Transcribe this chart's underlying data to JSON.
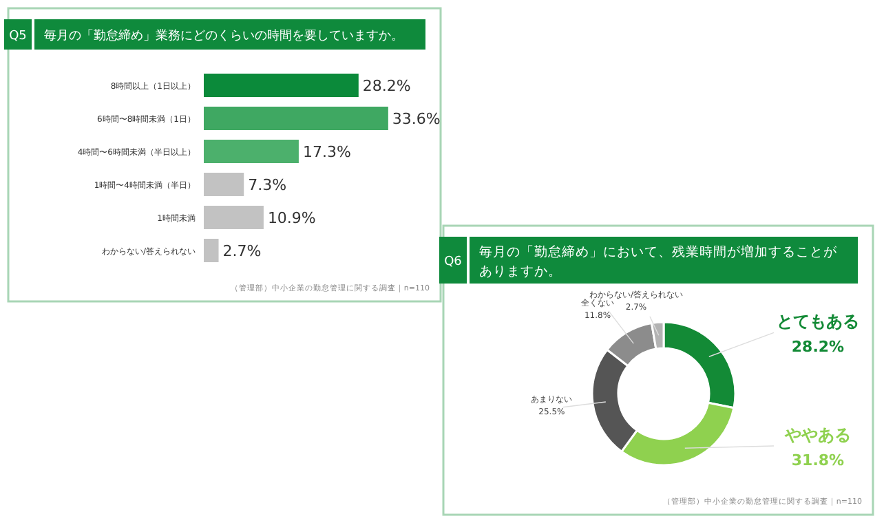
{
  "chart_data": [
    {
      "type": "bar",
      "orientation": "horizontal",
      "title": "毎月の「勤怠締め」業務にどのくらいの時間を要していますか。",
      "annotations": [
        "Q5",
        "（管理部）中小企業の勤怠管理に関する調査｜n=110"
      ],
      "categories": [
        "8時間以上（1日以上）",
        "6時間〜8時間未満（1日）",
        "4時間〜6時間未満（半日以上）",
        "1時間〜4時間未満（半日）",
        "1時間未満",
        "わからない/答えられない"
      ],
      "values": [
        28.2,
        33.6,
        17.3,
        7.3,
        10.9,
        2.7
      ],
      "colors": [
        "#0b8a3a",
        "#3fa862",
        "#4cb06c",
        "#c2c2c2",
        "#c2c2c2",
        "#c2c2c2"
      ],
      "value_labels": [
        "28.2%",
        "33.6%",
        "17.3%",
        "7.3%",
        "10.9%",
        "2.7%"
      ]
    },
    {
      "type": "donut",
      "title": "毎月の「勤怠締め」において、残業時間が増加することがありますか。",
      "annotations": [
        "Q6",
        "（管理部）中小企業の勤怠管理に関する調査｜n=110"
      ],
      "categories": [
        "とてもある",
        "ややある",
        "あまりない",
        "全くない",
        "わからない/答えられない"
      ],
      "values": [
        28.2,
        31.8,
        25.5,
        11.8,
        2.7
      ],
      "colors": [
        "#138a36",
        "#8fd14f",
        "#555555",
        "#8c8c8c",
        "#b3b3b3"
      ],
      "value_labels": [
        "28.2%",
        "31.8%",
        "25.5%",
        "11.8%",
        "2.7%"
      ]
    }
  ]
}
